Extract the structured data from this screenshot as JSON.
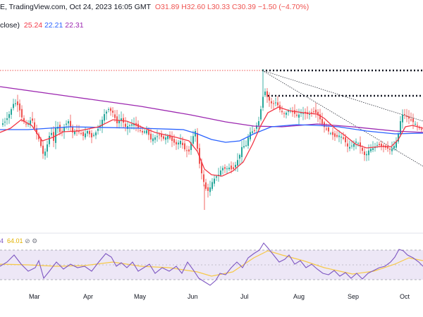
{
  "header": {
    "row1": "E, TradingView.com, Oct 24, 2023 16:05 GMT",
    "ohlc_o": "O31.89",
    "ohlc_h": "H32.60",
    "ohlc_l": "L30.33",
    "ohlc_c": "C30.39",
    "ohlc_change": "−1.50 (−4.70%)",
    "row2_prefix": "close)",
    "ma_values": [
      "25.24",
      "22.21",
      "22.31"
    ]
  },
  "rsi": {
    "header_prefix": "4",
    "value": "64.01"
  },
  "colors": {
    "up": "#26a69a",
    "down": "#ef5350",
    "ma_fast": "#f23645",
    "ma_mid": "#2962ff",
    "ma_slow": "#9c27b0",
    "rsi_line": "#7e57c2",
    "rsi_ma": "#f7c948",
    "rsi_band": "#ede7f6"
  },
  "chart_data": {
    "type": "candlestick",
    "x_ticks": [
      "Mar",
      "Apr",
      "May",
      "Jun",
      "Jul",
      "Aug",
      "Sep",
      "Oct"
    ],
    "last": {
      "open": 31.89,
      "high": 32.6,
      "low": 30.33,
      "close": 30.39,
      "change": -1.5,
      "change_pct": -4.7
    },
    "moving_averages": [
      25.24,
      22.21,
      22.31
    ],
    "rsi_value": 64.01,
    "rsi_band": [
      30,
      70
    ]
  }
}
